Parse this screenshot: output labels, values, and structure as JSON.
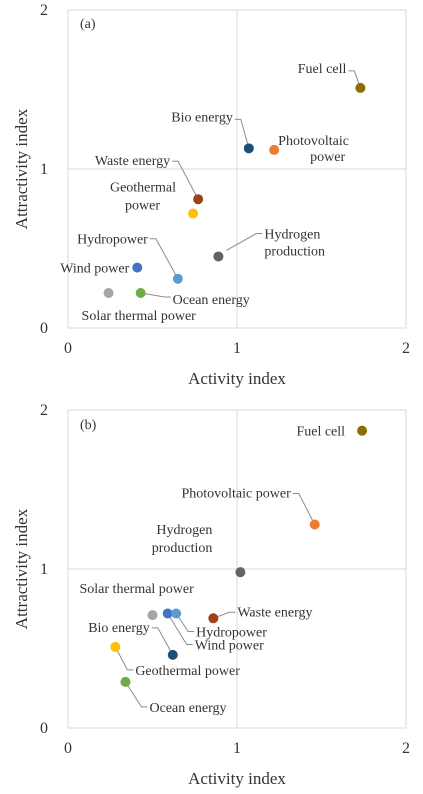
{
  "chart_data": [
    {
      "type": "scatter",
      "panel_label": "(a)",
      "xlabel": "Activity index",
      "ylabel": "Attractivity index",
      "xlim": [
        0,
        2
      ],
      "ylim": [
        0,
        2
      ],
      "x_ticks": [
        "0",
        "1",
        "2"
      ],
      "y_ticks": [
        "0",
        "1",
        "2"
      ],
      "grid": "reference lines at x = 1 and y = 1",
      "points": [
        {
          "label": "Fuel cell",
          "x": 1.73,
          "y": 1.51,
          "color": "#8b6f00"
        },
        {
          "label": "Bio energy",
          "x": 1.07,
          "y": 1.13,
          "color": "#1f4e79"
        },
        {
          "label": "Photovoltaic power",
          "x": 1.22,
          "y": 1.12,
          "color": "#ed7d31"
        },
        {
          "label": "Waste energy",
          "x": 0.77,
          "y": 0.81,
          "color": "#9c4119"
        },
        {
          "label": "Geothermal power",
          "x": 0.74,
          "y": 0.72,
          "color": "#ffc000"
        },
        {
          "label": "Hydrogen production",
          "x": 0.89,
          "y": 0.45,
          "color": "#636363"
        },
        {
          "label": "Hydropower",
          "x": 0.65,
          "y": 0.31,
          "color": "#5b9bd5"
        },
        {
          "label": "Wind power",
          "x": 0.41,
          "y": 0.38,
          "color": "#4472c4"
        },
        {
          "label": "Ocean energy",
          "x": 0.43,
          "y": 0.22,
          "color": "#70ad47"
        },
        {
          "label": "Solar thermal power",
          "x": 0.24,
          "y": 0.22,
          "color": "#a5a5a5"
        }
      ]
    },
    {
      "type": "scatter",
      "panel_label": "(b)",
      "xlabel": "Activity index",
      "ylabel": "Attractivity index",
      "xlim": [
        0,
        2
      ],
      "ylim": [
        0,
        2
      ],
      "x_ticks": [
        "0",
        "1",
        "2"
      ],
      "y_ticks": [
        "0",
        "1",
        "2"
      ],
      "grid": "reference lines at x = 1 and y = 1",
      "points": [
        {
          "label": "Fuel cell",
          "x": 1.74,
          "y": 1.87,
          "color": "#8b6f00"
        },
        {
          "label": "Photovoltaic power",
          "x": 1.46,
          "y": 1.28,
          "color": "#ed7d31"
        },
        {
          "label": "Hydrogen production",
          "x": 1.02,
          "y": 0.98,
          "color": "#636363"
        },
        {
          "label": "Solar thermal power",
          "x": 0.5,
          "y": 0.71,
          "color": "#a5a5a5"
        },
        {
          "label": "Wind power",
          "x": 0.59,
          "y": 0.72,
          "color": "#4472c4"
        },
        {
          "label": "Hydropower",
          "x": 0.64,
          "y": 0.72,
          "color": "#5b9bd5"
        },
        {
          "label": "Waste energy",
          "x": 0.86,
          "y": 0.69,
          "color": "#9c4119"
        },
        {
          "label": "Bio energy",
          "x": 0.62,
          "y": 0.46,
          "color": "#1f4e79"
        },
        {
          "label": "Geothermal power",
          "x": 0.28,
          "y": 0.51,
          "color": "#ffc000"
        },
        {
          "label": "Ocean energy",
          "x": 0.34,
          "y": 0.29,
          "color": "#70ad47"
        }
      ]
    }
  ]
}
